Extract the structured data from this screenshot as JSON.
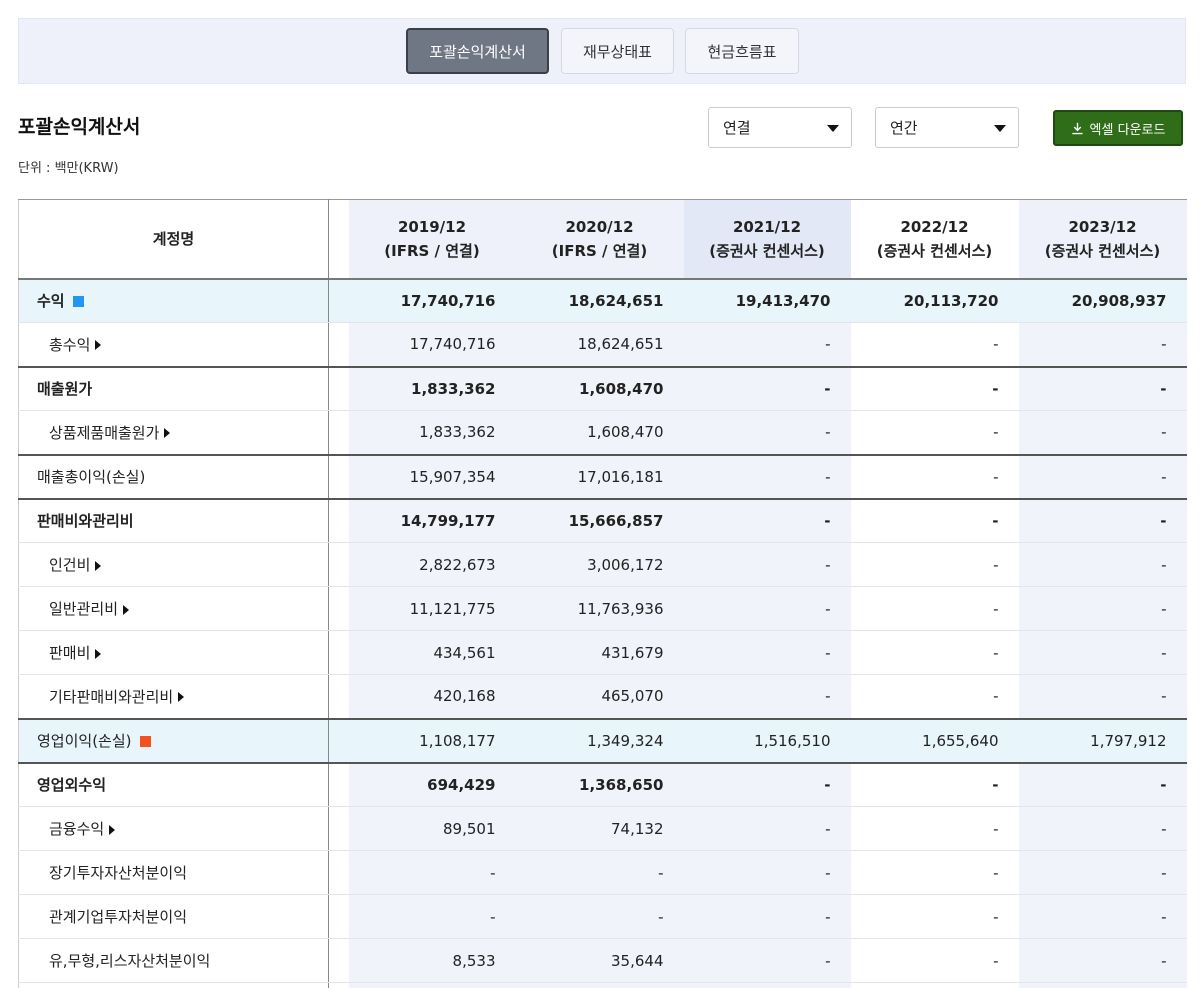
{
  "tabs": [
    "포괄손익계산서",
    "재무상태표",
    "현금흐름표"
  ],
  "section_title": "포괄손익계산서",
  "unit": "단위 : 백만(KRW)",
  "filters": {
    "consolidation": "연결",
    "period": "연간"
  },
  "download_label": "엑셀 다운로드",
  "colors": {
    "revenue_marker": "#2196f3",
    "op_income_marker": "#f4511e",
    "download_bg": "#2f6d18"
  },
  "table": {
    "account_header": "계정명",
    "columns": [
      {
        "period": "2019/12",
        "basis": "(IFRS / 연결)"
      },
      {
        "period": "2020/12",
        "basis": "(IFRS / 연결)"
      },
      {
        "period": "2021/12",
        "basis": "(증권사 컨센서스)"
      },
      {
        "period": "2022/12",
        "basis": "(증권사 컨센서스)"
      },
      {
        "period": "2023/12",
        "basis": "(증권사 컨센서스)"
      }
    ],
    "rows": [
      {
        "label": "수익",
        "values": [
          "17,740,716",
          "18,624,651",
          "19,413,470",
          "20,113,720",
          "20,908,937"
        ]
      },
      {
        "label": "총수익",
        "values": [
          "17,740,716",
          "18,624,651",
          "-",
          "-",
          "-"
        ]
      },
      {
        "label": "매출원가",
        "values": [
          "1,833,362",
          "1,608,470",
          "-",
          "-",
          "-"
        ]
      },
      {
        "label": "상품제품매출원가",
        "values": [
          "1,833,362",
          "1,608,470",
          "-",
          "-",
          "-"
        ]
      },
      {
        "label": "매출총이익(손실)",
        "values": [
          "15,907,354",
          "17,016,181",
          "-",
          "-",
          "-"
        ]
      },
      {
        "label": "판매비와관리비",
        "values": [
          "14,799,177",
          "15,666,857",
          "-",
          "-",
          "-"
        ]
      },
      {
        "label": "인건비",
        "values": [
          "2,822,673",
          "3,006,172",
          "-",
          "-",
          "-"
        ]
      },
      {
        "label": "일반관리비",
        "values": [
          "11,121,775",
          "11,763,936",
          "-",
          "-",
          "-"
        ]
      },
      {
        "label": "판매비",
        "values": [
          "434,561",
          "431,679",
          "-",
          "-",
          "-"
        ]
      },
      {
        "label": "기타판매비와관리비",
        "values": [
          "420,168",
          "465,070",
          "-",
          "-",
          "-"
        ]
      },
      {
        "label": "영업이익(손실)",
        "values": [
          "1,108,177",
          "1,349,324",
          "1,516,510",
          "1,655,640",
          "1,797,912"
        ]
      },
      {
        "label": "영업외수익",
        "values": [
          "694,429",
          "1,368,650",
          "-",
          "-",
          "-"
        ]
      },
      {
        "label": "금융수익",
        "values": [
          "89,501",
          "74,132",
          "-",
          "-",
          "-"
        ]
      },
      {
        "label": "장기투자자산처분이익",
        "values": [
          "-",
          "-",
          "-",
          "-",
          "-"
        ]
      },
      {
        "label": "관계기업투자처분이익",
        "values": [
          "-",
          "-",
          "-",
          "-",
          "-"
        ]
      },
      {
        "label": "유,무형,리스자산처분이익",
        "values": [
          "8,533",
          "35,644",
          "-",
          "-",
          "-"
        ]
      },
      {
        "label": "",
        "values": [
          "",
          "",
          "",
          "",
          ""
        ]
      }
    ]
  }
}
